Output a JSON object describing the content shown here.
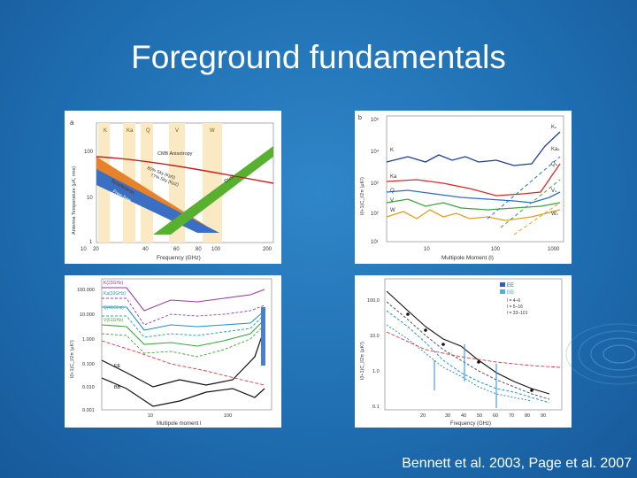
{
  "slide": {
    "title": "Foreground fundamentals",
    "citation": "Bennett et al. 2003, Page et al. 2007"
  },
  "panel_a": {
    "letter": "a",
    "bands": [
      "K",
      "Ka",
      "Q",
      "V",
      "W"
    ],
    "ylabel": "Antenna Temperature (μK, rms)",
    "xlabel": "Frequency (GHz)",
    "yticks": [
      "100",
      "10",
      "1"
    ],
    "xticks": [
      "10",
      "20",
      "40",
      "60",
      "80",
      "100",
      "200"
    ],
    "labels": [
      "CMB Anisotropy",
      "Synchrotron",
      "Free-free",
      "Dust",
      "85% Sky (Kp0)",
      "77% Sky (Kp2)"
    ]
  },
  "panel_b": {
    "letter": "b",
    "ylabel": "l(l+1)C_l/2π (μK²)",
    "xlabel": "Multipole Moment (l)",
    "yticks": [
      "10⁵",
      "10⁴",
      "10³",
      "10²",
      "10¹"
    ],
    "xticks": [
      "10",
      "100",
      "1000"
    ],
    "left_labels": [
      "K",
      "Ka",
      "Q",
      "V",
      "W"
    ],
    "right_labels": [
      "Kₛ",
      "Kaₛ",
      "Qₛ",
      "Vₛ",
      "Wₛ"
    ]
  },
  "panel_c": {
    "ylabel": "l(l+1)C_l/2π (μK²)",
    "xlabel": "Multipole moment l",
    "yticks": [
      "100.000",
      "10.000",
      "1.000",
      "0.100",
      "0.010",
      "0.001"
    ],
    "xticks": [
      "10",
      "100"
    ],
    "band_labels": [
      "K(23GHz)",
      "Ka(33GHz)",
      "Q(41GHz)",
      "V(61GHz)"
    ],
    "spectra_labels": [
      "EE",
      "BB"
    ]
  },
  "panel_d": {
    "ylabel": "l(l+1)C_l/2π (μK²)",
    "xlabel": "Frequency (GHz)",
    "yticks": [
      "100.0",
      "10.0",
      "1.0",
      "0.1"
    ],
    "xticks": [
      "20",
      "30",
      "40",
      "50",
      "60",
      "70",
      "80",
      "90"
    ],
    "legend_spectra": [
      "EE",
      "BB"
    ],
    "legend_ranges": [
      "l = 4–6",
      "l = 5–16",
      "l = 33–101"
    ]
  }
}
